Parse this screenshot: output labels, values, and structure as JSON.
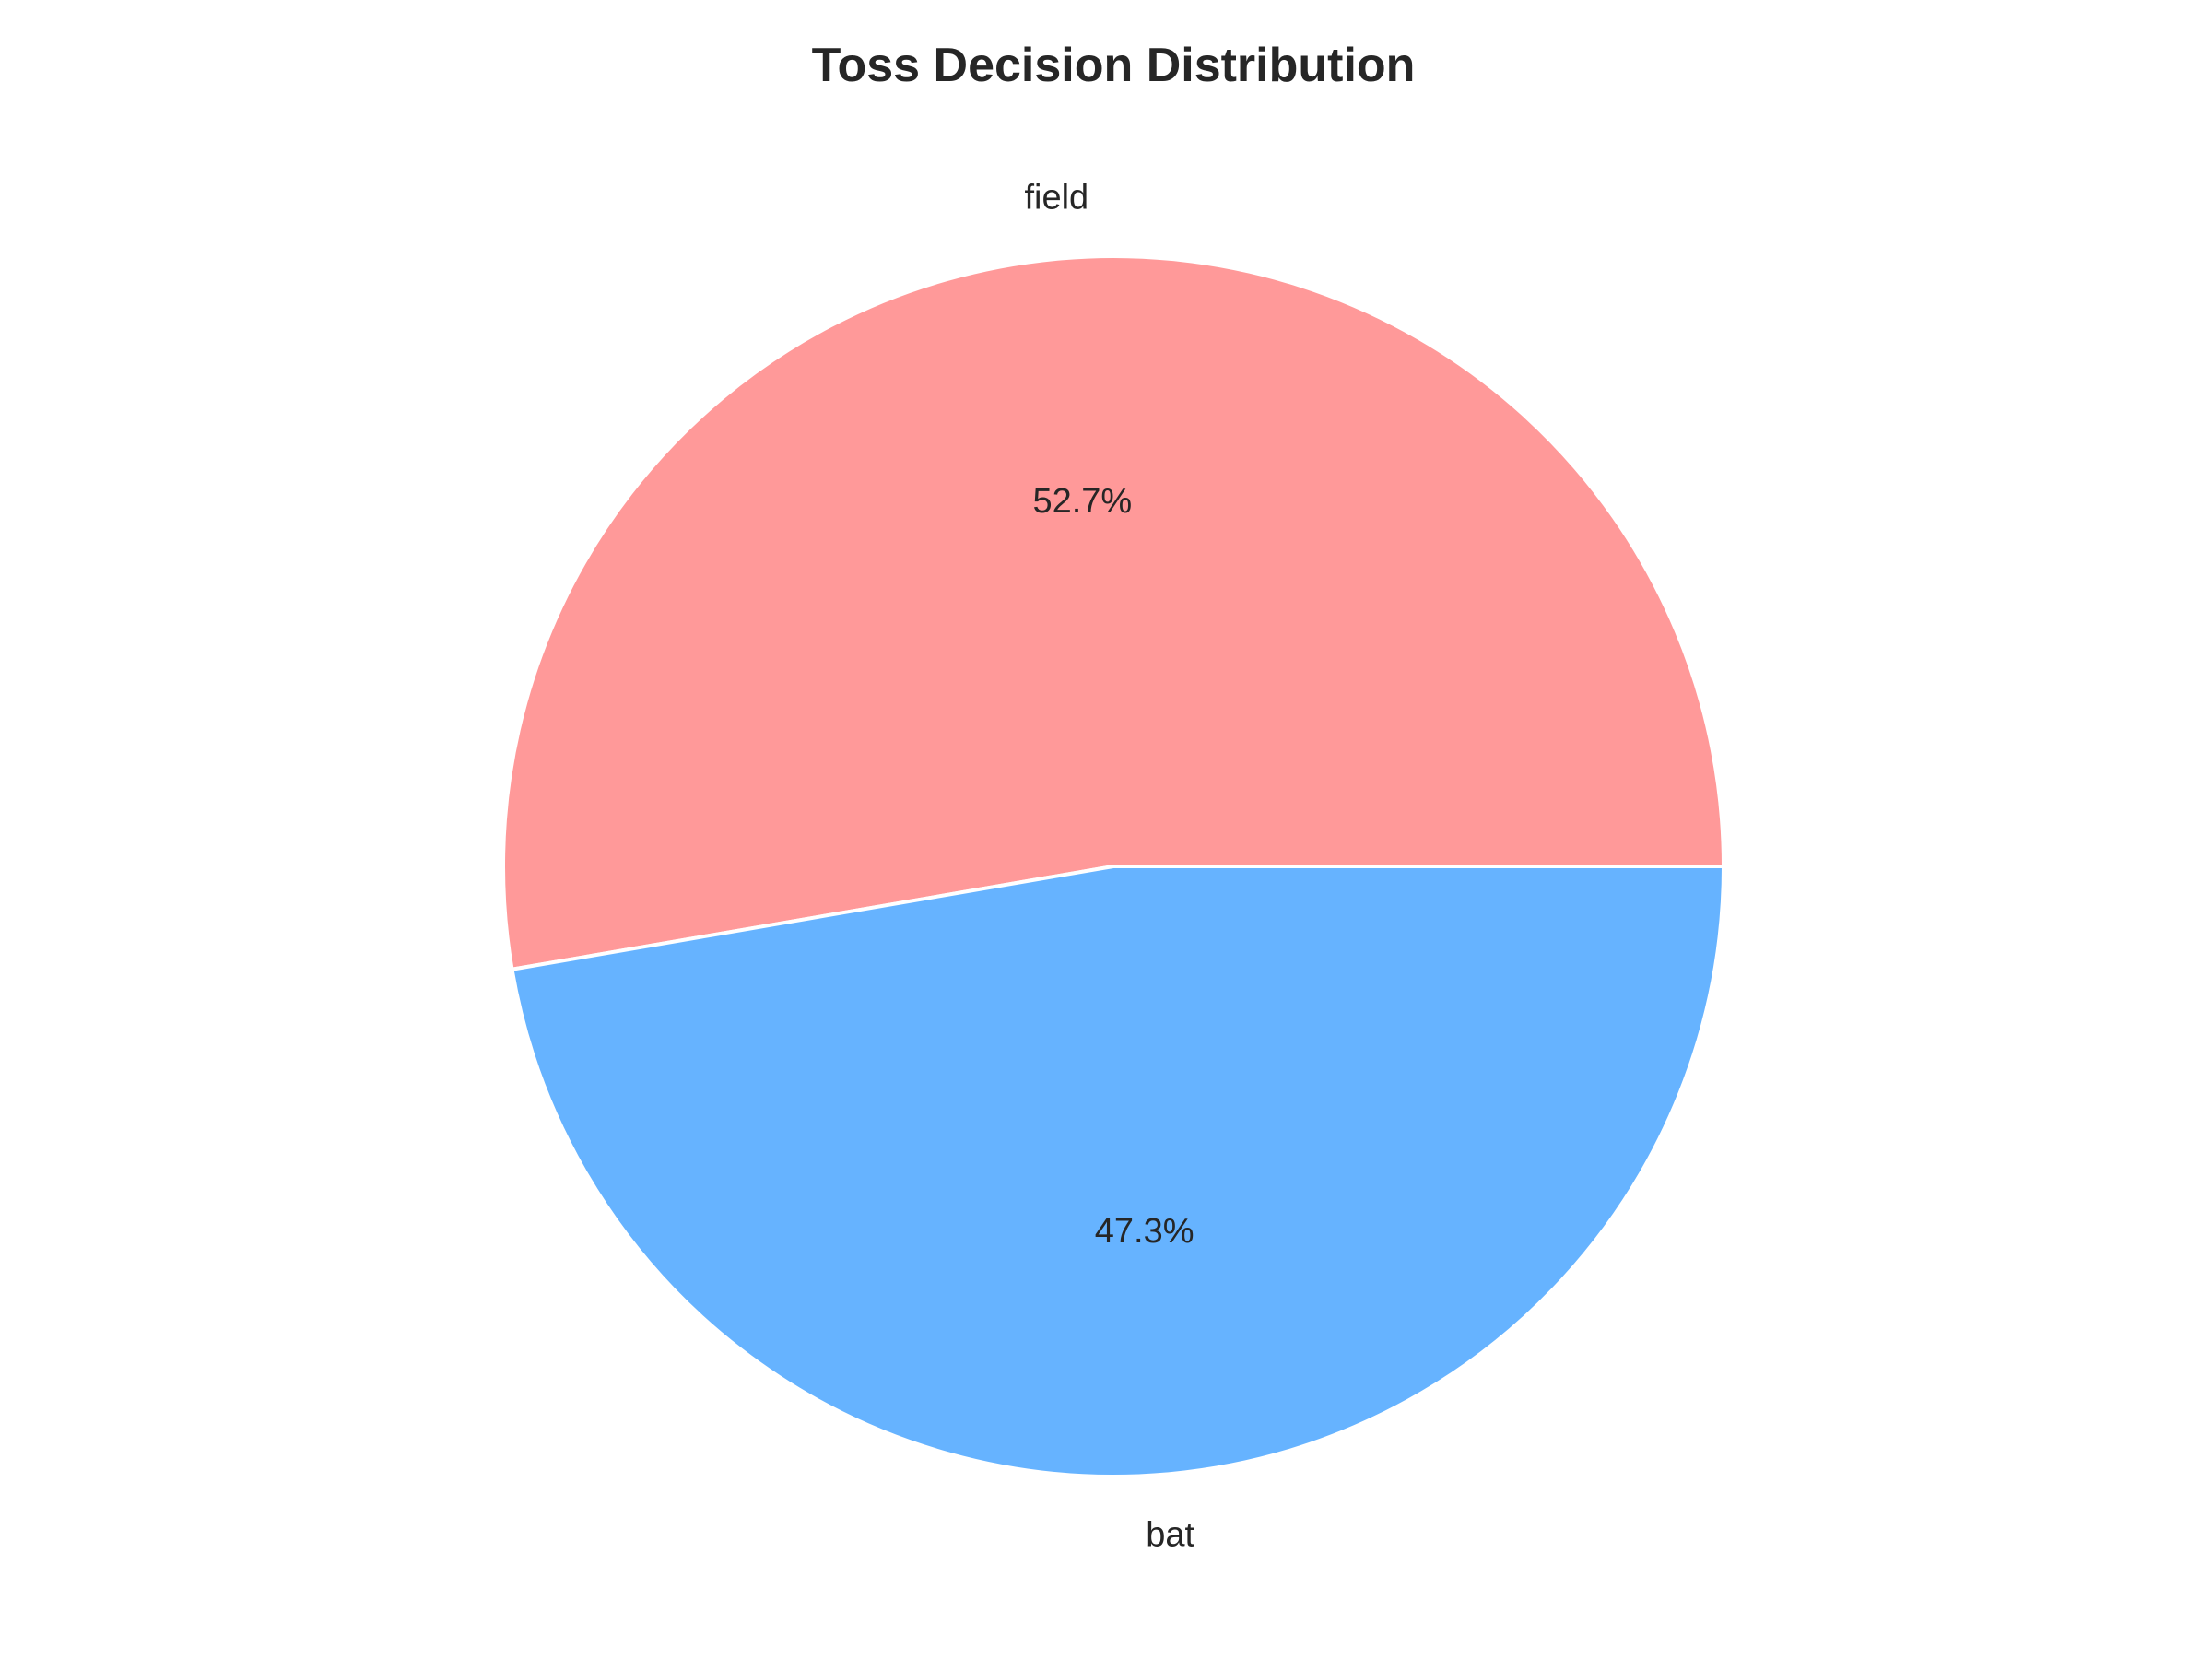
{
  "chart_data": {
    "type": "pie",
    "title": "Toss Decision Distribution",
    "labels": [
      "field",
      "bat"
    ],
    "values": [
      52.7,
      47.3
    ],
    "value_labels": [
      "52.7%",
      "47.3%"
    ],
    "colors": [
      "#ff9999",
      "#66b3ff"
    ],
    "start_angle_deg": 0,
    "direction": "counterclockwise",
    "edge_color": "#ffffff"
  }
}
